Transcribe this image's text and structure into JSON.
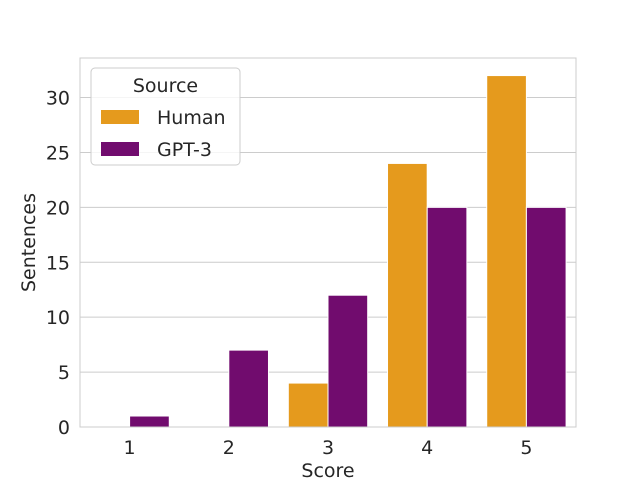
{
  "chart_data": {
    "type": "bar",
    "title": "",
    "xlabel": "Score",
    "ylabel": "Sentences",
    "categories": [
      "1",
      "2",
      "3",
      "4",
      "5"
    ],
    "series": [
      {
        "name": "Human",
        "values": [
          0,
          0,
          4,
          24,
          32
        ],
        "color": "#e59a1d"
      },
      {
        "name": "GPT-3",
        "values": [
          1,
          7,
          12,
          20,
          20
        ],
        "color": "#710c6e"
      }
    ],
    "ylim": [
      0,
      33.6
    ],
    "yticks": [
      0,
      5,
      10,
      15,
      20,
      25,
      30
    ],
    "grid": true,
    "legend": {
      "title": "Source",
      "position": "top-left"
    }
  }
}
